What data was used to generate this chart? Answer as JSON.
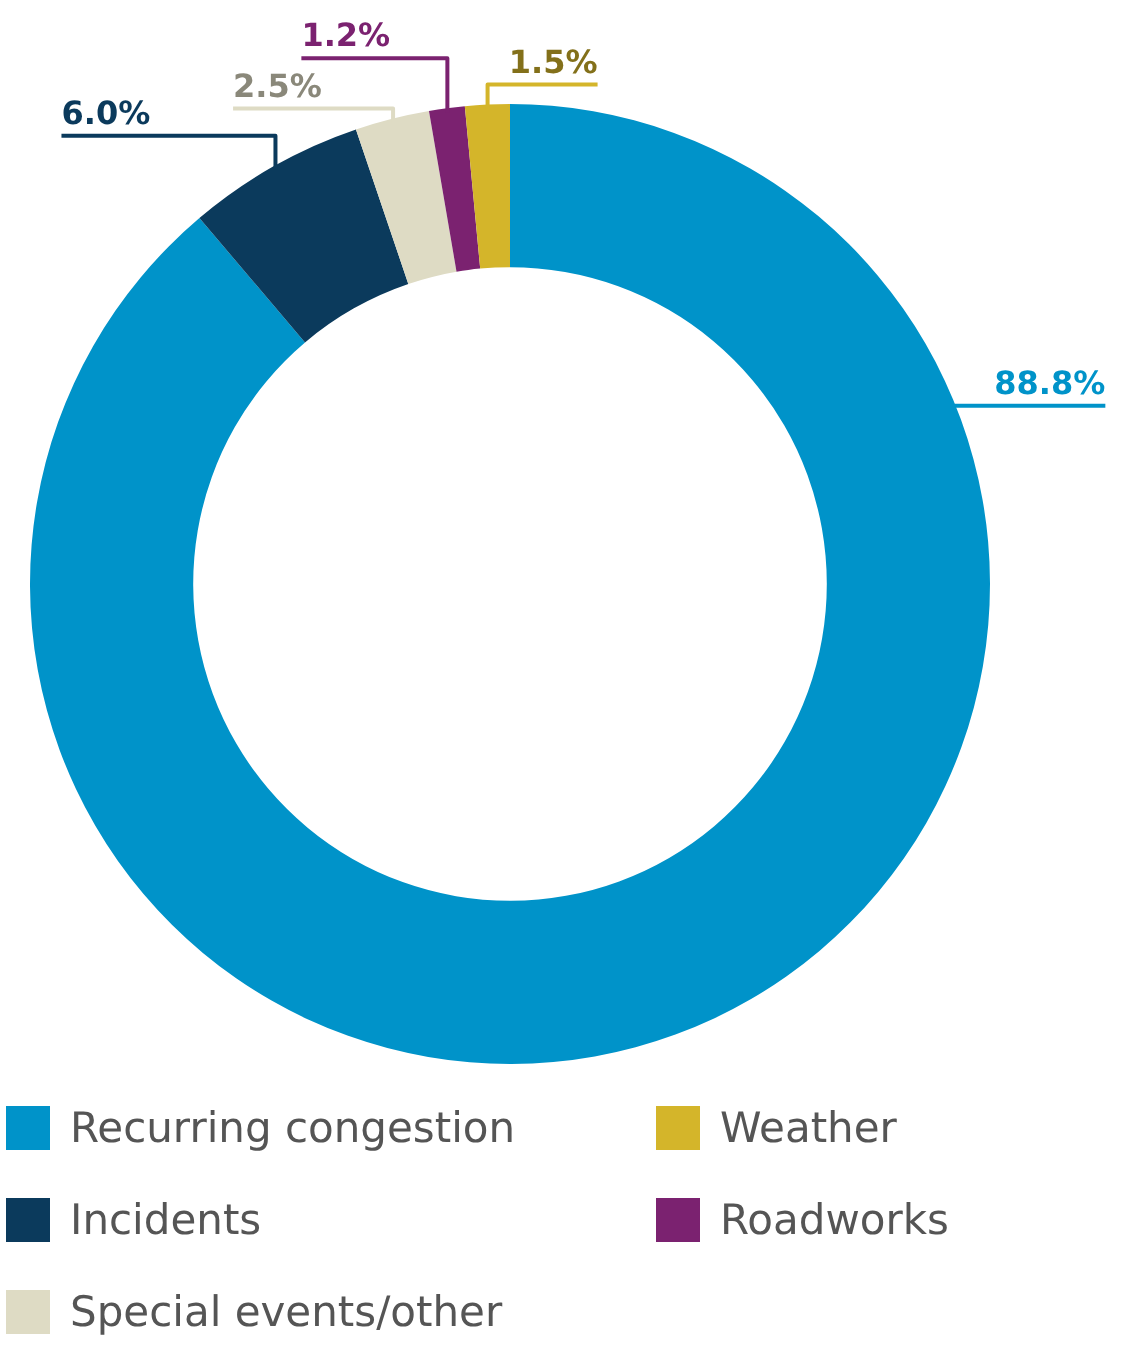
{
  "chart_data": {
    "type": "donut",
    "categories": [
      "Recurring congestion",
      "Incidents",
      "Special events/other",
      "Roadworks",
      "Weather"
    ],
    "values": [
      88.8,
      6.0,
      2.5,
      1.2,
      1.5
    ],
    "colors": [
      "#0093c9",
      "#0b3a5c",
      "#dedbc4",
      "#7b2270",
      "#d4b52a"
    ],
    "value_labels": [
      "88.8%",
      "6.0%",
      "2.5%",
      "1.2%",
      "1.5%"
    ],
    "legend": "bottom"
  }
}
